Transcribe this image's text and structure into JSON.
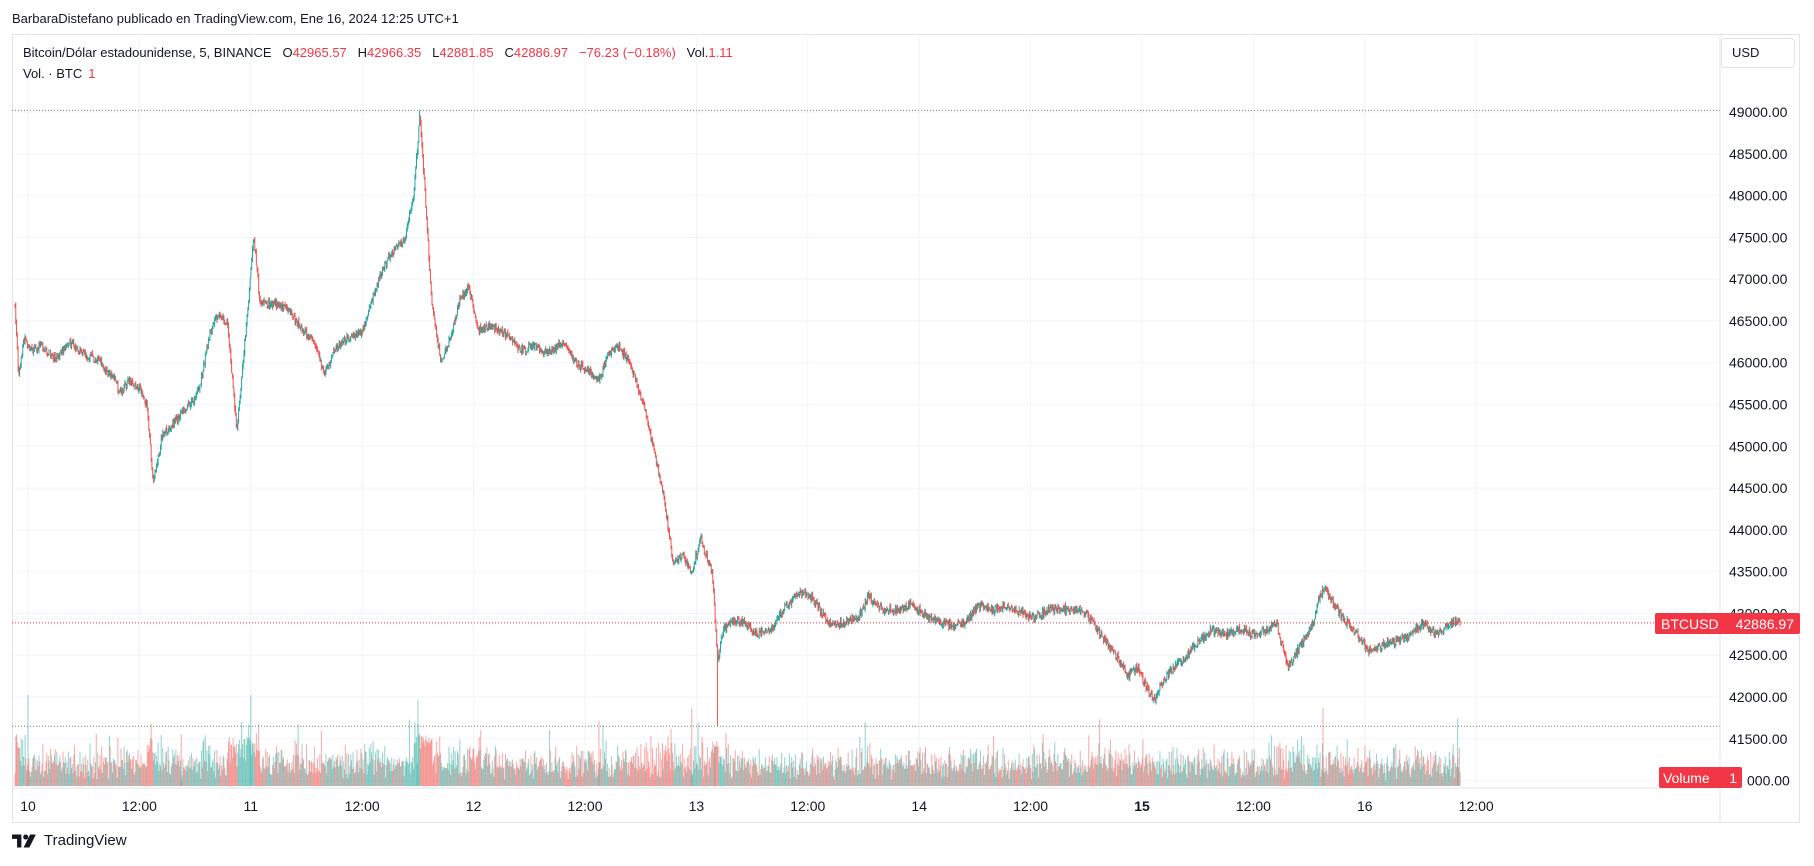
{
  "header": {
    "published_line": "BarbaraDistefano publicado en TradingView.com, Ene 16, 2024 12:25 UTC+1"
  },
  "legend": {
    "symbol": "Bitcoin/Dólar estadounidense, 5, BINANCE",
    "o_label": "O",
    "o_value": "42965.57",
    "h_label": "H",
    "h_value": "42966.35",
    "l_label": "L",
    "l_value": "42881.85",
    "c_label": "C",
    "c_value": "42886.97",
    "change": "−76.23 (−0.18%)",
    "vol_label": "Vol.",
    "vol_value": "1.11",
    "volume_line_label": "Vol. · BTC",
    "volume_line_value": "1"
  },
  "currency_button": "USD",
  "price_badge": {
    "symbol": "BTCUSD",
    "value": "42886.97"
  },
  "volume_badge": {
    "label": "Volume",
    "value": "1"
  },
  "brand": {
    "name": "TradingView"
  },
  "colors": {
    "up": "#26a69a",
    "down": "#ef5350",
    "badge": "#f23645",
    "grid": "#f0f3fa",
    "text": "#131722"
  },
  "chart_data": {
    "type": "candlestick",
    "title": "",
    "symbol": "BTCUSD",
    "interval": "5",
    "exchange": "BINANCE",
    "y_axis": {
      "ticks": [
        41000,
        41500,
        42000,
        42500,
        43000,
        43500,
        44000,
        44500,
        45000,
        45500,
        46000,
        46500,
        47000,
        47500,
        48000,
        48500,
        49000
      ],
      "tick_labels": [
        "41000.00",
        "41500.00",
        "42000.00",
        "42500.00",
        "43000.00",
        "43500.00",
        "44000.00",
        "44500.00",
        "45000.00",
        "45500.00",
        "46000.00",
        "46500.00",
        "47000.00",
        "47500.00",
        "48000.00",
        "48500.00",
        "49000.00"
      ],
      "range": [
        40950,
        49150
      ],
      "visible_tick_labels": [
        "42000.00",
        "42500.00",
        "43000.00",
        "43500.00",
        "44000.00",
        "44500.00",
        "45000.00",
        "45500.00",
        "46000.00",
        "46500.00",
        "47000.00",
        "47500.00",
        "48000.00",
        "48500.00",
        "49000.00"
      ],
      "bottom_label": "000.00",
      "bottom_label_value": 41000,
      "above_label": "41500.00",
      "above_label_value": 41500
    },
    "x_axis": {
      "ticks": [
        {
          "t": 0,
          "label": "10",
          "bold": false
        },
        {
          "t": 12,
          "label": "12:00",
          "bold": false
        },
        {
          "t": 24,
          "label": "11",
          "bold": false
        },
        {
          "t": 36,
          "label": "12:00",
          "bold": false
        },
        {
          "t": 48,
          "label": "12",
          "bold": false
        },
        {
          "t": 60,
          "label": "12:00",
          "bold": false
        },
        {
          "t": 72,
          "label": "13",
          "bold": false
        },
        {
          "t": 84,
          "label": "12:00",
          "bold": false
        },
        {
          "t": 96,
          "label": "14",
          "bold": false
        },
        {
          "t": 108,
          "label": "12:00",
          "bold": false
        },
        {
          "t": 120,
          "label": "15",
          "bold": true
        },
        {
          "t": 132,
          "label": "12:00",
          "bold": false
        },
        {
          "t": 144,
          "label": "16",
          "bold": false
        },
        {
          "t": 156,
          "label": "12:00",
          "bold": false
        }
      ],
      "unit": "hours since Jan 10 00:00",
      "range": [
        -1.5,
        157.5
      ]
    },
    "price_path": [
      [
        -1.4,
        46700
      ],
      [
        -1.0,
        45800
      ],
      [
        -0.5,
        46300
      ],
      [
        0.5,
        46150
      ],
      [
        1.5,
        46200
      ],
      [
        3.0,
        46050
      ],
      [
        4.5,
        46250
      ],
      [
        6.0,
        46100
      ],
      [
        7.5,
        46050
      ],
      [
        9.0,
        45850
      ],
      [
        10.0,
        45650
      ],
      [
        11.0,
        45800
      ],
      [
        12.0,
        45700
      ],
      [
        12.8,
        45500
      ],
      [
        13.5,
        44550
      ],
      [
        14.5,
        45150
      ],
      [
        15.5,
        45250
      ],
      [
        16.5,
        45400
      ],
      [
        17.5,
        45500
      ],
      [
        18.5,
        45700
      ],
      [
        19.5,
        46300
      ],
      [
        20.5,
        46600
      ],
      [
        21.5,
        46450
      ],
      [
        22.5,
        45200
      ],
      [
        23.5,
        46400
      ],
      [
        24.3,
        47550
      ],
      [
        25.0,
        46700
      ],
      [
        26.5,
        46700
      ],
      [
        28.0,
        46650
      ],
      [
        29.5,
        46400
      ],
      [
        31.0,
        46200
      ],
      [
        32.0,
        45850
      ],
      [
        33.0,
        46150
      ],
      [
        34.5,
        46300
      ],
      [
        36.0,
        46350
      ],
      [
        37.5,
        46900
      ],
      [
        39.0,
        47300
      ],
      [
        40.5,
        47450
      ],
      [
        41.5,
        47950
      ],
      [
        42.2,
        48950
      ],
      [
        42.8,
        48000
      ],
      [
        43.5,
        46700
      ],
      [
        44.5,
        46000
      ],
      [
        45.5,
        46300
      ],
      [
        46.5,
        46750
      ],
      [
        47.5,
        46900
      ],
      [
        48.5,
        46400
      ],
      [
        50.0,
        46450
      ],
      [
        51.5,
        46350
      ],
      [
        53.0,
        46150
      ],
      [
        54.5,
        46200
      ],
      [
        56.0,
        46100
      ],
      [
        57.5,
        46250
      ],
      [
        59.0,
        46000
      ],
      [
        60.5,
        45900
      ],
      [
        61.5,
        45800
      ],
      [
        62.5,
        46100
      ],
      [
        63.5,
        46200
      ],
      [
        64.5,
        46050
      ],
      [
        65.5,
        45800
      ],
      [
        66.5,
        45400
      ],
      [
        67.5,
        44900
      ],
      [
        68.5,
        44400
      ],
      [
        69.5,
        43600
      ],
      [
        70.5,
        43700
      ],
      [
        71.5,
        43500
      ],
      [
        72.5,
        43900
      ],
      [
        73.3,
        43600
      ],
      [
        73.7,
        43500
      ],
      [
        74.3,
        42450
      ],
      [
        74.8,
        42750
      ],
      [
        75.5,
        42900
      ],
      [
        77.0,
        42900
      ],
      [
        78.5,
        42750
      ],
      [
        80.0,
        42800
      ],
      [
        81.5,
        43050
      ],
      [
        83.0,
        43250
      ],
      [
        84.5,
        43200
      ],
      [
        85.5,
        43000
      ],
      [
        86.5,
        42850
      ],
      [
        88.0,
        42900
      ],
      [
        89.5,
        42950
      ],
      [
        90.5,
        43200
      ],
      [
        92.0,
        43050
      ],
      [
        93.5,
        43050
      ],
      [
        95.0,
        43100
      ],
      [
        96.5,
        43000
      ],
      [
        98.0,
        42900
      ],
      [
        99.5,
        42850
      ],
      [
        101.0,
        42900
      ],
      [
        102.5,
        43100
      ],
      [
        104.0,
        43050
      ],
      [
        105.5,
        43100
      ],
      [
        107.0,
        43000
      ],
      [
        108.5,
        42950
      ],
      [
        110.0,
        43050
      ],
      [
        111.5,
        43050
      ],
      [
        113.0,
        43050
      ],
      [
        114.5,
        42950
      ],
      [
        115.5,
        42750
      ],
      [
        116.5,
        42600
      ],
      [
        117.5,
        42450
      ],
      [
        118.5,
        42250
      ],
      [
        119.5,
        42350
      ],
      [
        120.5,
        42100
      ],
      [
        121.3,
        41950
      ],
      [
        122.0,
        42150
      ],
      [
        123.0,
        42300
      ],
      [
        124.5,
        42450
      ],
      [
        126.0,
        42650
      ],
      [
        127.5,
        42800
      ],
      [
        129.0,
        42750
      ],
      [
        130.5,
        42800
      ],
      [
        132.0,
        42750
      ],
      [
        133.5,
        42800
      ],
      [
        134.5,
        42900
      ],
      [
        135.0,
        42650
      ],
      [
        135.8,
        42350
      ],
      [
        136.5,
        42500
      ],
      [
        137.5,
        42700
      ],
      [
        138.5,
        42900
      ],
      [
        139.0,
        43150
      ],
      [
        139.6,
        43300
      ],
      [
        140.5,
        43150
      ],
      [
        141.5,
        42950
      ],
      [
        142.5,
        42850
      ],
      [
        143.5,
        42700
      ],
      [
        144.3,
        42550
      ],
      [
        145.5,
        42600
      ],
      [
        147.0,
        42650
      ],
      [
        148.5,
        42700
      ],
      [
        149.5,
        42800
      ],
      [
        150.5,
        42900
      ],
      [
        151.5,
        42750
      ],
      [
        152.5,
        42800
      ],
      [
        153.5,
        42900
      ],
      [
        154.3,
        42887
      ]
    ],
    "extremes": {
      "high": {
        "t": 42.2,
        "price": 49020
      },
      "low": {
        "t": 74.3,
        "price": 41650
      }
    },
    "volume": {
      "scale_max": 1,
      "spikes": [
        {
          "t": 0.0,
          "value": 0.35
        },
        {
          "t": 16.5,
          "value": 0.2
        },
        {
          "t": 24.0,
          "value": 0.35
        },
        {
          "t": 42.0,
          "value": 0.33
        },
        {
          "t": 61.5,
          "value": 0.25
        },
        {
          "t": 71.5,
          "value": 0.3
        },
        {
          "t": 74.0,
          "value": 0.15
        },
        {
          "t": 139.5,
          "value": 0.3
        },
        {
          "t": 154.0,
          "value": 0.26
        }
      ],
      "badge_value": "1"
    },
    "last_price": 42886.97,
    "reference_lines": [
      {
        "price": 49020,
        "color": "#787b86",
        "style": "dotted"
      },
      {
        "price": 41650,
        "color": "#787b86",
        "style": "dotted"
      },
      {
        "price": 42886.97,
        "color": "#f23645",
        "style": "dotted"
      }
    ]
  }
}
